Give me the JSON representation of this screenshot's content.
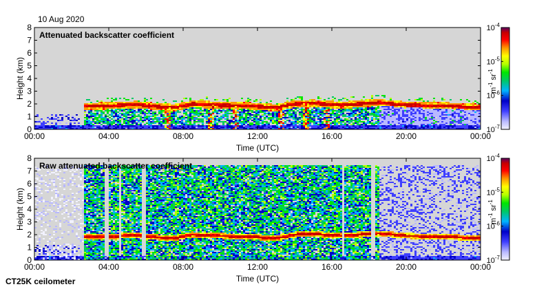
{
  "date_label": "10 Aug 2020",
  "footer_label": "CT25K ceilometer",
  "colors": {
    "background": "#d6d6d6",
    "colormap": [
      "#f2f2ff",
      "#b8b8ff",
      "#3f3fff",
      "#0000c8",
      "#00b4ff",
      "#00c864",
      "#00e600",
      "#b4ff00",
      "#ffff00",
      "#ff9600",
      "#ff0000",
      "#c80000",
      "#5a0064"
    ]
  },
  "chart_data": [
    {
      "type": "heatmap",
      "title": "Attenuated backscatter coefficient",
      "xlabel": "Time (UTC)",
      "ylabel": "Height (km)",
      "x_ticks": [
        "00:00",
        "04:00",
        "08:00",
        "12:00",
        "16:00",
        "20:00",
        "00:00"
      ],
      "xlim_hours": [
        0,
        24
      ],
      "ylim": [
        0,
        8
      ],
      "y_ticks": [
        "0",
        "1",
        "2",
        "3",
        "4",
        "5",
        "6",
        "7",
        "8"
      ],
      "colorbar": {
        "scale": "log",
        "range": [
          1e-07,
          0.0001
        ],
        "tick_labels": [
          {
            "base": "10",
            "exp": "-4"
          },
          {
            "base": "10",
            "exp": "-5"
          },
          {
            "base": "10",
            "exp": "-6"
          },
          {
            "base": "10",
            "exp": "-7"
          }
        ],
        "unit_parts": [
          {
            "text": "m",
            "sup": "-1"
          },
          {
            "text": "sr",
            "sup": "-1"
          }
        ]
      },
      "layer_height_profile": [
        {
          "t": 2.7,
          "h": 1.8
        },
        {
          "t": 4.0,
          "h": 1.85
        },
        {
          "t": 5.5,
          "h": 1.95
        },
        {
          "t": 6.5,
          "h": 1.8
        },
        {
          "t": 7.5,
          "h": 1.7
        },
        {
          "t": 8.5,
          "h": 2.0
        },
        {
          "t": 10.0,
          "h": 1.9
        },
        {
          "t": 11.5,
          "h": 1.85
        },
        {
          "t": 13.0,
          "h": 1.7
        },
        {
          "t": 14.0,
          "h": 2.0
        },
        {
          "t": 15.0,
          "h": 2.05
        },
        {
          "t": 16.5,
          "h": 1.9
        },
        {
          "t": 17.5,
          "h": 2.0
        },
        {
          "t": 18.5,
          "h": 2.1
        },
        {
          "t": 20.0,
          "h": 1.9
        },
        {
          "t": 22.0,
          "h": 1.85
        },
        {
          "t": 24.0,
          "h": 1.7
        }
      ],
      "dips_hours": [
        7.2,
        9.5,
        10.8,
        13.3,
        14.6,
        15.7
      ]
    },
    {
      "type": "heatmap",
      "title": "Raw attenuated backscatter coefficient",
      "xlabel": "Time (UTC)",
      "ylabel": "Height (km)",
      "x_ticks": [
        "00:00",
        "04:00",
        "08:00",
        "12:00",
        "16:00",
        "20:00",
        "00:00"
      ],
      "xlim_hours": [
        0,
        24
      ],
      "ylim": [
        0,
        8
      ],
      "y_ticks": [
        "0",
        "1",
        "2",
        "3",
        "4",
        "5",
        "6",
        "7",
        "8"
      ],
      "colorbar": {
        "scale": "log",
        "range": [
          1e-07,
          0.0001
        ],
        "tick_labels": [
          {
            "base": "10",
            "exp": "-4"
          },
          {
            "base": "10",
            "exp": "-5"
          },
          {
            "base": "10",
            "exp": "-6"
          },
          {
            "base": "10",
            "exp": "-7"
          }
        ],
        "unit_parts": [
          {
            "text": "m",
            "sup": "-1"
          },
          {
            "text": "sr",
            "sup": "-1"
          }
        ]
      },
      "noise_region_hours": [
        2.7,
        18.5
      ],
      "noise_top_km": 7.5,
      "gap_hours": [
        3.9,
        4.6,
        5.9,
        16.6,
        18.2
      ]
    }
  ]
}
